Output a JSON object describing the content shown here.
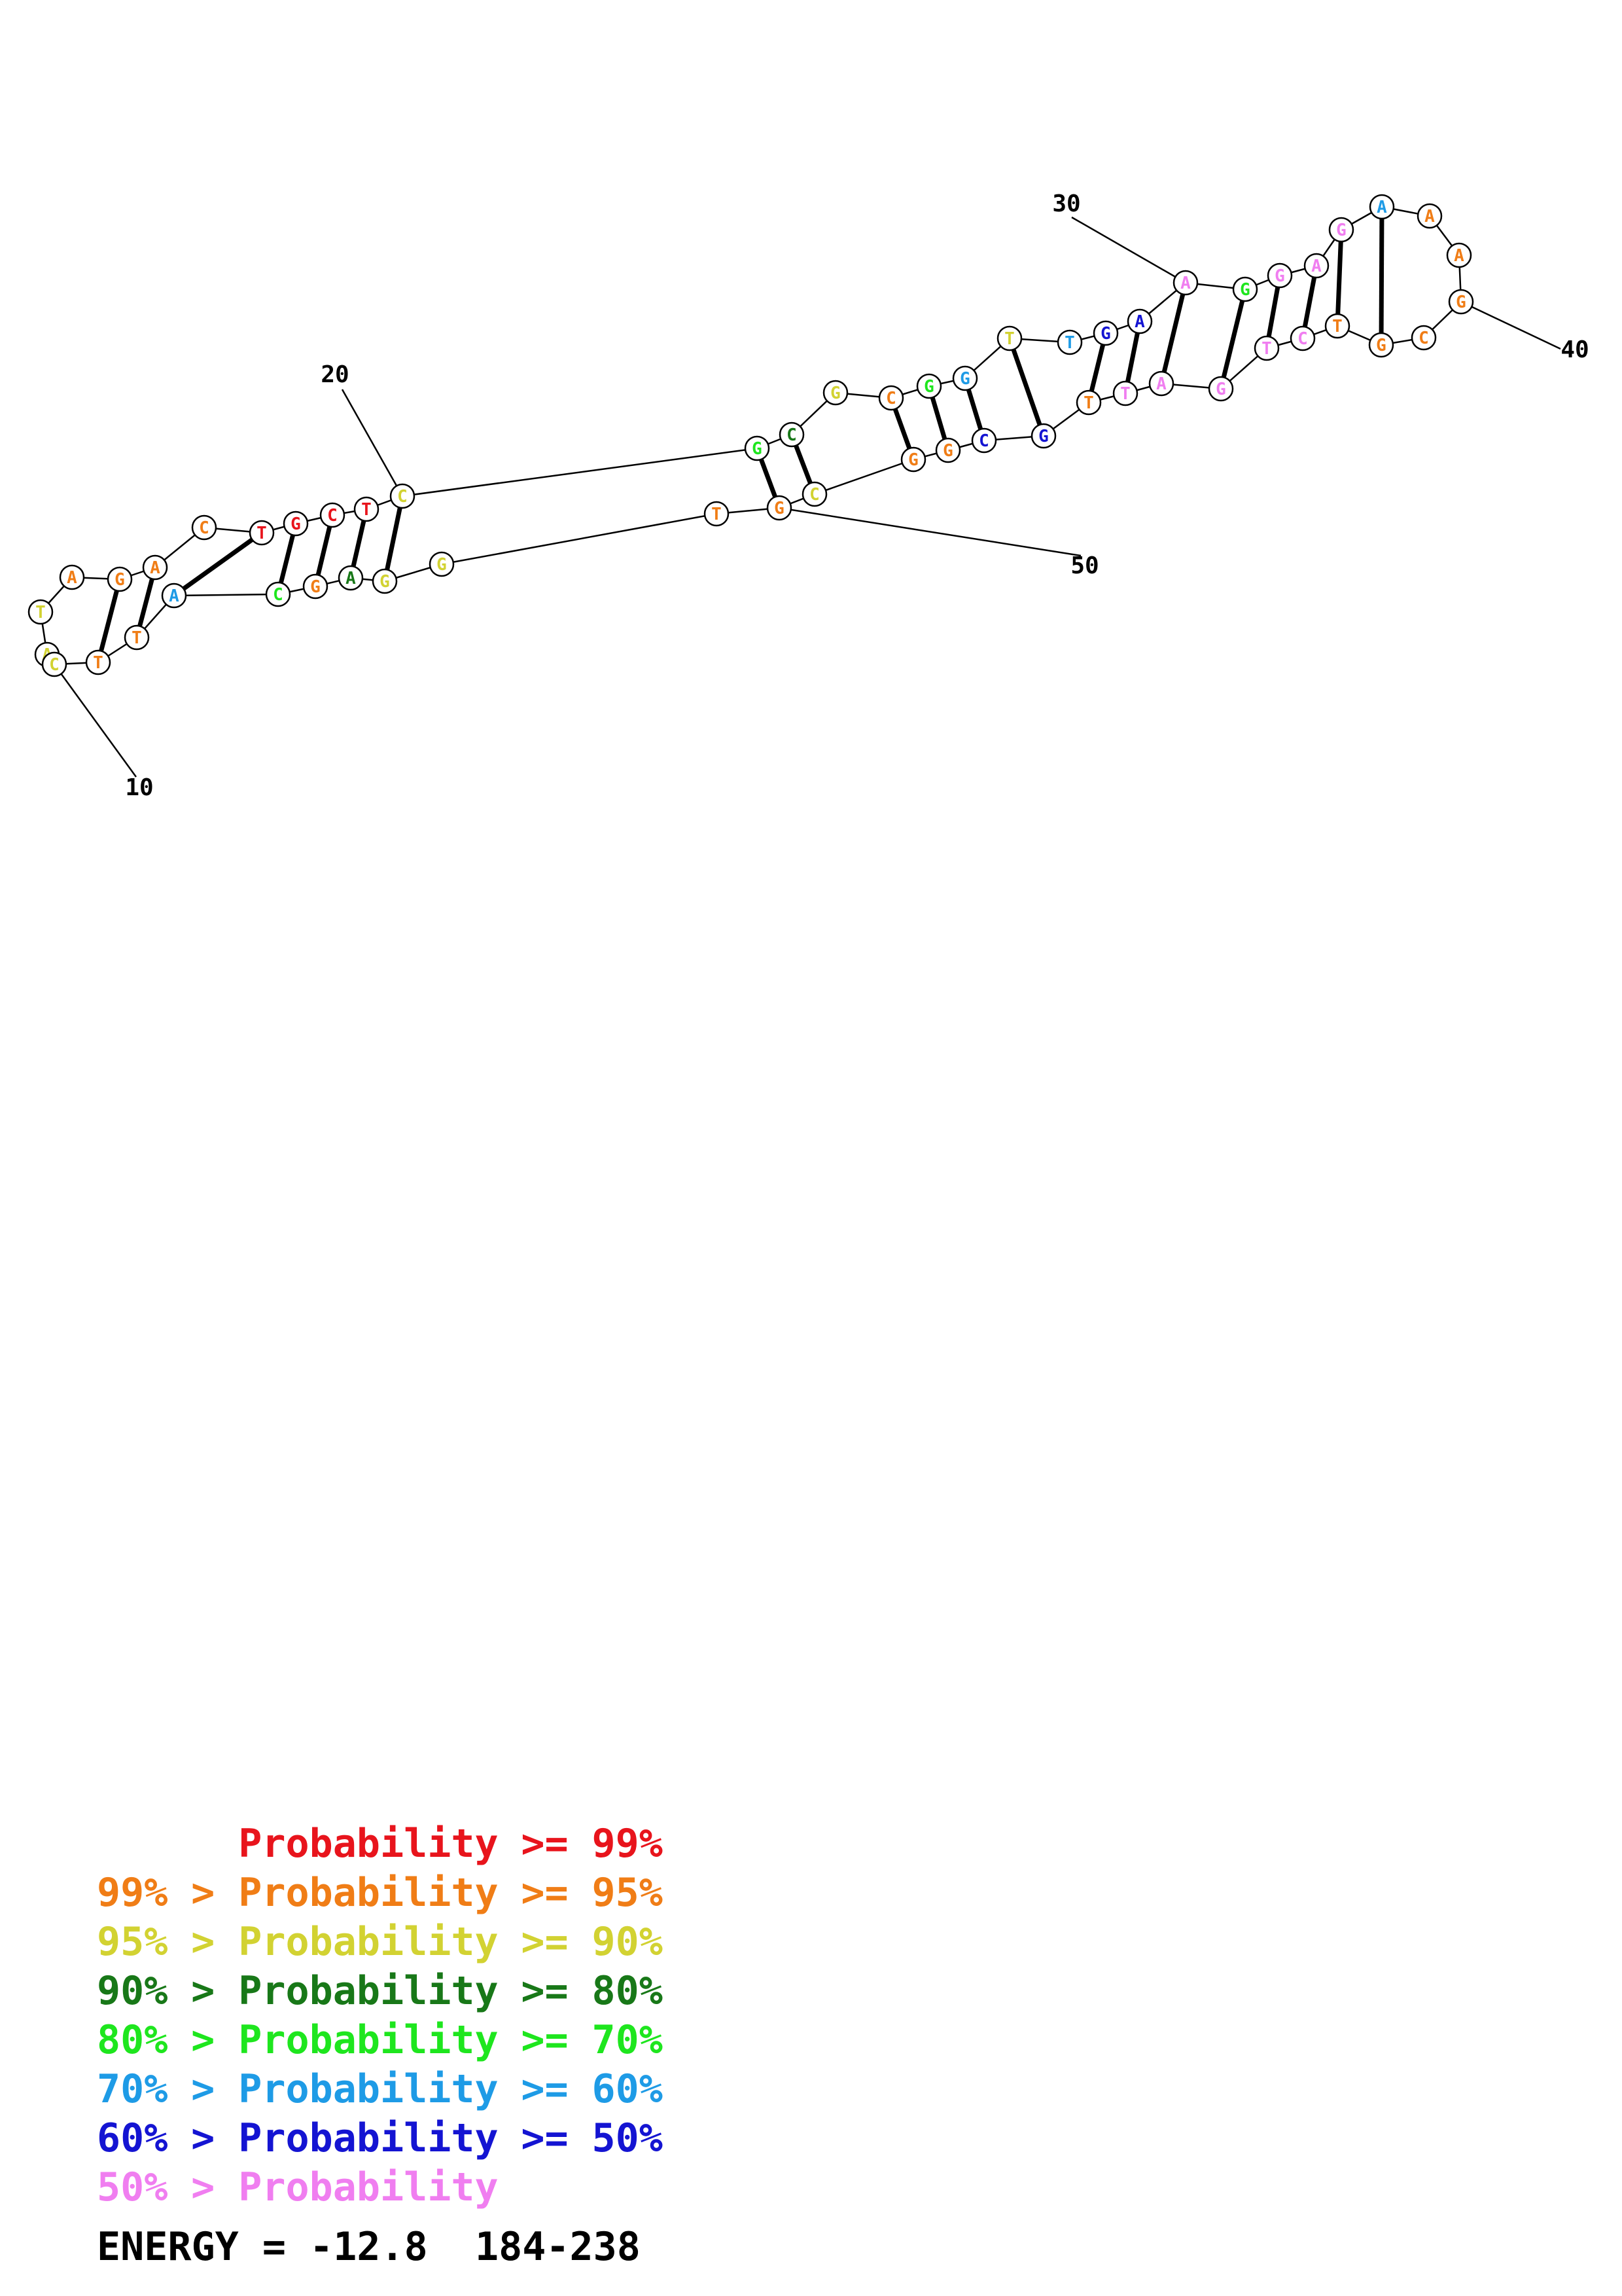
{
  "legend": {
    "colors": [
      "#e8141c",
      "#f07d16",
      "#d2d232",
      "#187818",
      "#1ee61e",
      "#1e9be6",
      "#1414d2",
      "#f07ef0"
    ],
    "rows": [
      {
        "prefix": "",
        "gt": "",
        "label": "Probability",
        "op": ">=",
        "value": "99%"
      },
      {
        "prefix": "99%",
        "gt": ">",
        "label": "Probability",
        "op": ">=",
        "value": "95%"
      },
      {
        "prefix": "95%",
        "gt": ">",
        "label": "Probability",
        "op": ">=",
        "value": "90%"
      },
      {
        "prefix": "90%",
        "gt": ">",
        "label": "Probability",
        "op": ">=",
        "value": "80%"
      },
      {
        "prefix": "80%",
        "gt": ">",
        "label": "Probability",
        "op": ">=",
        "value": "70%"
      },
      {
        "prefix": "70%",
        "gt": ">",
        "label": "Probability",
        "op": ">=",
        "value": "60%"
      },
      {
        "prefix": "60%",
        "gt": ">",
        "label": "Probability",
        "op": ">=",
        "value": "50%"
      },
      {
        "prefix": "50%",
        "gt": ">",
        "label": "Probability",
        "op": "",
        "value": ""
      }
    ]
  },
  "energy": {
    "label": "ENERGY",
    "eq": "=",
    "value": "-12.8",
    "range": "184-238"
  },
  "structure": {
    "sequence": [
      "A",
      "T",
      "A",
      "G",
      "A",
      "C",
      "T",
      "G",
      "C",
      "T",
      "C",
      "G",
      "C",
      "G",
      "C",
      "G",
      "G",
      "T",
      "T",
      "G",
      "A",
      "A",
      "G",
      "G",
      "A",
      "G",
      "A",
      "A",
      "A",
      "G",
      "C",
      "G",
      "T",
      "C",
      "T",
      "G",
      "A",
      "T",
      "T",
      "G",
      "C",
      "G",
      "G",
      "C",
      "G",
      "T",
      "G",
      "G",
      "A",
      "G",
      "C",
      "A",
      "T",
      "T",
      "C"
    ],
    "tiers": [
      3,
      3,
      2,
      2,
      2,
      2,
      1,
      1,
      1,
      1,
      3,
      5,
      4,
      3,
      2,
      5,
      6,
      3,
      6,
      7,
      7,
      8,
      5,
      8,
      8,
      8,
      6,
      2,
      2,
      2,
      2,
      2,
      2,
      8,
      8,
      8,
      8,
      8,
      2,
      7,
      7,
      2,
      2,
      3,
      2,
      2,
      3,
      3,
      4,
      2,
      5,
      6,
      2,
      2,
      3
    ],
    "index_labels": [
      "10",
      "20",
      "30",
      "40",
      "50"
    ]
  }
}
